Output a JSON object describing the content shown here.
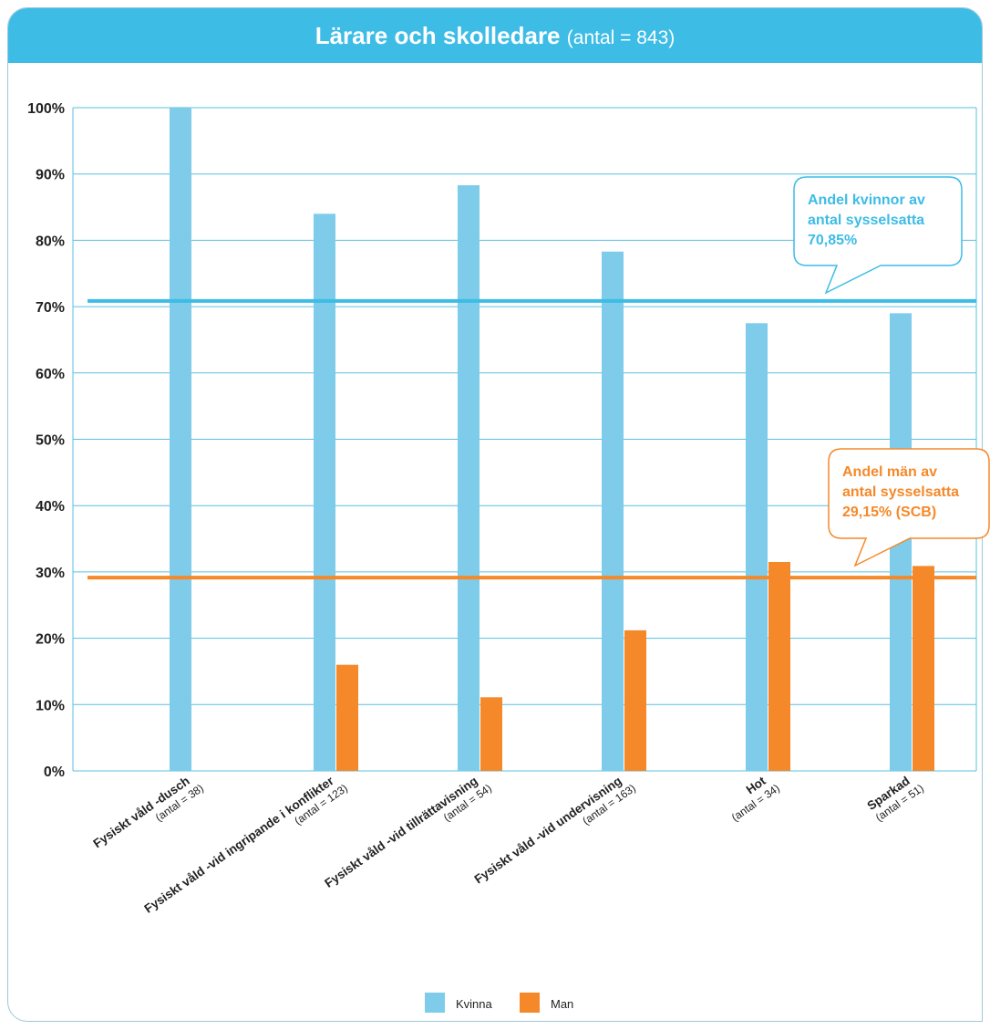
{
  "header": {
    "title": "Lärare och skolledare",
    "subtitle": "(antal = 843)"
  },
  "chart_data": {
    "type": "bar",
    "title": "Lärare och skolledare",
    "subtitle": "(antal = 843)",
    "ylim": [
      0,
      100
    ],
    "yticks": [
      "0%",
      "10%",
      "20%",
      "30%",
      "40%",
      "50%",
      "60%",
      "70%",
      "80%",
      "90%",
      "100%"
    ],
    "grid": true,
    "legend_position": "bottom",
    "categories": [
      {
        "label": "Fysiskt våld -dusch",
        "sublabel": "(antal = 38)"
      },
      {
        "label": "Fysiskt våld -vid ingripande i konflikter",
        "sublabel": "(antal = 123)"
      },
      {
        "label": "Fysiskt våld -vid tillrättavisning",
        "sublabel": "(antal = 54)"
      },
      {
        "label": "Fysiskt våld -vid  undervisning",
        "sublabel": "(antal = 163)"
      },
      {
        "label": "Hot",
        "sublabel": "(antal = 34)"
      },
      {
        "label": "Sparkad",
        "sublabel": "(antal = 51)"
      }
    ],
    "series": [
      {
        "name": "Kvinna",
        "color": "#7ecbea",
        "values": [
          100,
          84,
          88.3,
          78.3,
          67.5,
          69
        ]
      },
      {
        "name": "Man",
        "color": "#f5892a",
        "values": [
          0,
          16,
          11.1,
          21.2,
          31.5,
          30.9
        ]
      }
    ],
    "reference_lines": [
      {
        "value": 70.85,
        "color": "#3dbce6",
        "text": [
          "Andel kvinnor av",
          "antal sysselsatta",
          "70,85%"
        ]
      },
      {
        "value": 29.15,
        "color": "#f5892a",
        "text": [
          "Andel män av",
          "antal sysselsatta",
          "29,15% (SCB)"
        ]
      }
    ]
  }
}
